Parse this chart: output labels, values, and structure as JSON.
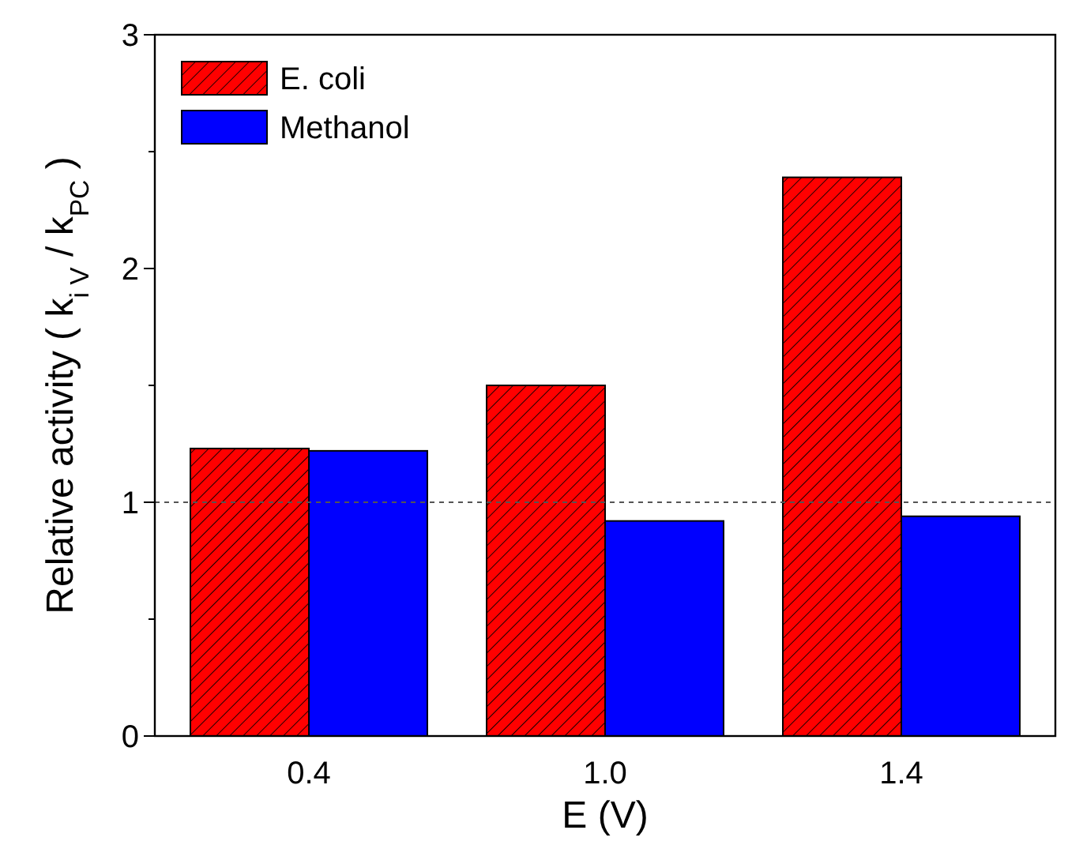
{
  "chart_data": {
    "type": "bar",
    "xlabel": "E (V)",
    "ylabel": "Relative activity ( k$_{i V}$ / k$_{PC}$ )",
    "categories": [
      "0.4",
      "1.0",
      "1.4"
    ],
    "series": [
      {
        "name": "E. coli",
        "color": "#ff0000",
        "values": [
          1.23,
          1.5,
          2.39
        ]
      },
      {
        "name": "Methanol",
        "color": "#0000ff",
        "values": [
          1.22,
          0.92,
          0.94
        ]
      }
    ],
    "ylim": [
      0,
      3
    ],
    "yticks": [
      0,
      {
        "value": 0.5,
        "label": null
      },
      1,
      {
        "value": 1.5,
        "label": null
      },
      2,
      {
        "value": 2.5,
        "label": null
      },
      3
    ],
    "ref_lines": [
      {
        "axis": "y",
        "value": 1,
        "color": "#555555",
        "line_style": "dashed"
      }
    ],
    "legend": "top left",
    "grid": false
  }
}
